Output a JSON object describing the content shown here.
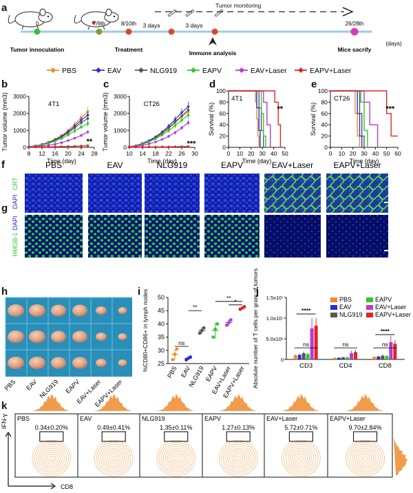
{
  "panel_labels": {
    "a": "a",
    "b": "b",
    "c": "c",
    "d": "d",
    "e": "e",
    "f": "f",
    "g": "g",
    "h": "h",
    "i": "i",
    "j": "j",
    "k": "k"
  },
  "timeline": {
    "tumor_monitoring": "Tumor monitoring",
    "events": [
      {
        "top": "0",
        "bottom": "Tumor innoculation",
        "color": "#3dbb3d"
      },
      {
        "top": "7/9th",
        "bottom": "",
        "color": "#8a9a2a"
      },
      {
        "top": "8/10th",
        "bottom": "Treatment",
        "color": "#e0452f"
      },
      {
        "top": "",
        "bottom": "",
        "color": "#e0452f"
      },
      {
        "top": "",
        "bottom": "",
        "color": "#e0452f"
      },
      {
        "top": "26/28th",
        "bottom": "Mice sacrify",
        "color": "#d63bbd"
      }
    ],
    "gap_labels": [
      "3 days",
      "3 days"
    ],
    "immune_analysis": "Immune analysis",
    "unit": "(days)"
  },
  "legend": [
    {
      "name": "PBS",
      "color": "#f08a2c"
    },
    {
      "name": "EAV",
      "color": "#2a2fd1"
    },
    {
      "name": "NLG919",
      "color": "#555555"
    },
    {
      "name": "EAPV",
      "color": "#2ec72e"
    },
    {
      "name": "EAV+Laser",
      "color": "#b63ad6"
    },
    {
      "name": "EAPV+Laser",
      "color": "#e02424"
    }
  ],
  "chart_data": [
    {
      "type": "line",
      "panel": "b",
      "annotation": "4T1",
      "xlabel": "Time (day)",
      "ylabel": "Tumor volume (mm3)",
      "xlim": [
        8,
        28
      ],
      "ylim": [
        0,
        3000
      ],
      "xticks": [
        "8",
        "12",
        "16",
        "20",
        "24",
        "28"
      ],
      "yticks": [
        "0",
        "1000",
        "2000",
        "3000"
      ],
      "x": [
        8,
        10,
        12,
        14,
        16,
        18,
        20,
        22,
        24,
        26
      ],
      "significance": "**",
      "series": [
        {
          "name": "PBS",
          "values": [
            40,
            90,
            180,
            300,
            480,
            700,
            1000,
            1350,
            1750,
            2100
          ]
        },
        {
          "name": "EAV",
          "values": [
            40,
            85,
            170,
            280,
            450,
            650,
            920,
            1250,
            1600,
            1900
          ]
        },
        {
          "name": "NLG919",
          "values": [
            40,
            80,
            160,
            260,
            420,
            600,
            850,
            1150,
            1450,
            1700
          ]
        },
        {
          "name": "EAPV",
          "values": [
            40,
            75,
            140,
            230,
            360,
            520,
            730,
            960,
            1200,
            1400
          ]
        },
        {
          "name": "EAV+Laser",
          "values": [
            30,
            50,
            80,
            120,
            190,
            280,
            400,
            540,
            700,
            900
          ]
        },
        {
          "name": "EAPV+Laser",
          "values": [
            20,
            20,
            25,
            30,
            35,
            40,
            50,
            60,
            80,
            100
          ]
        }
      ]
    },
    {
      "type": "line",
      "panel": "c",
      "annotation": "CT26",
      "xlabel": "Time (day)",
      "ylabel": "Tumor volume (mm3)",
      "xlim": [
        10,
        30
      ],
      "ylim": [
        0,
        3000
      ],
      "xticks": [
        "10",
        "14",
        "18",
        "22",
        "26",
        "30"
      ],
      "yticks": [
        "0",
        "1000",
        "2000",
        "3000"
      ],
      "x": [
        10,
        12,
        14,
        16,
        18,
        20,
        22,
        24,
        26,
        28
      ],
      "significance": "***",
      "series": [
        {
          "name": "PBS",
          "values": [
            40,
            90,
            200,
            350,
            550,
            800,
            1100,
            1450,
            1800,
            2100
          ]
        },
        {
          "name": "EAV",
          "values": [
            40,
            100,
            230,
            400,
            620,
            900,
            1250,
            1650,
            2050,
            2400
          ]
        },
        {
          "name": "NLG919",
          "values": [
            40,
            90,
            210,
            370,
            580,
            840,
            1150,
            1500,
            1850,
            2200
          ]
        },
        {
          "name": "EAPV",
          "values": [
            40,
            80,
            180,
            320,
            500,
            720,
            980,
            1280,
            1600,
            1900
          ]
        },
        {
          "name": "EAV+Laser",
          "values": [
            30,
            60,
            120,
            200,
            320,
            470,
            650,
            870,
            1150,
            1450
          ]
        },
        {
          "name": "EAPV+Laser",
          "values": [
            20,
            20,
            20,
            25,
            25,
            30,
            30,
            35,
            40,
            50
          ]
        }
      ]
    },
    {
      "type": "line",
      "panel": "d",
      "annotation": "4T1",
      "xlabel": "Time (day)",
      "ylabel": "Survival (%)",
      "xlim": [
        0,
        50
      ],
      "ylim": [
        0,
        100
      ],
      "xticks": [
        "0",
        "10",
        "20",
        "30",
        "40",
        "50"
      ],
      "yticks": [
        "0",
        "20",
        "40",
        "60",
        "80",
        "100"
      ],
      "significance": "**",
      "series": [
        {
          "name": "PBS",
          "steps": [
            [
              0,
              100
            ],
            [
              24,
              100
            ],
            [
              24,
              80
            ],
            [
              25,
              80
            ],
            [
              25,
              50
            ],
            [
              26,
              50
            ],
            [
              26,
              20
            ],
            [
              27,
              20
            ],
            [
              27,
              0
            ]
          ]
        },
        {
          "name": "EAV",
          "steps": [
            [
              0,
              100
            ],
            [
              25,
              100
            ],
            [
              25,
              70
            ],
            [
              27,
              70
            ],
            [
              27,
              30
            ],
            [
              28,
              30
            ],
            [
              28,
              0
            ]
          ]
        },
        {
          "name": "NLG919",
          "steps": [
            [
              0,
              100
            ],
            [
              27,
              100
            ],
            [
              27,
              70
            ],
            [
              29,
              70
            ],
            [
              29,
              30
            ],
            [
              31,
              30
            ],
            [
              31,
              0
            ]
          ]
        },
        {
          "name": "EAPV",
          "steps": [
            [
              0,
              100
            ],
            [
              29,
              100
            ],
            [
              29,
              60
            ],
            [
              31,
              60
            ],
            [
              31,
              20
            ],
            [
              33,
              20
            ],
            [
              33,
              0
            ]
          ]
        },
        {
          "name": "EAV+Laser",
          "steps": [
            [
              0,
              100
            ],
            [
              31,
              100
            ],
            [
              31,
              80
            ],
            [
              34,
              80
            ],
            [
              34,
              40
            ],
            [
              37,
              40
            ],
            [
              37,
              0
            ]
          ]
        },
        {
          "name": "EAPV+Laser",
          "steps": [
            [
              0,
              100
            ],
            [
              41,
              100
            ],
            [
              41,
              80
            ],
            [
              44,
              80
            ],
            [
              44,
              40
            ],
            [
              46,
              40
            ],
            [
              46,
              0
            ]
          ]
        }
      ]
    },
    {
      "type": "line",
      "panel": "e",
      "annotation": "CT26",
      "xlabel": "Time (day)",
      "ylabel": "Survival (%)",
      "xlim": [
        0,
        60
      ],
      "ylim": [
        0,
        100
      ],
      "xticks": [
        "0",
        "10",
        "20",
        "30",
        "40",
        "50",
        "60"
      ],
      "yticks": [
        "0",
        "20",
        "40",
        "60",
        "80",
        "100"
      ],
      "significance": "***",
      "series": [
        {
          "name": "PBS",
          "steps": [
            [
              0,
              100
            ],
            [
              22,
              100
            ],
            [
              22,
              60
            ],
            [
              24,
              60
            ],
            [
              24,
              20
            ],
            [
              26,
              20
            ],
            [
              26,
              0
            ]
          ]
        },
        {
          "name": "EAV",
          "steps": [
            [
              0,
              100
            ],
            [
              24,
              100
            ],
            [
              24,
              60
            ],
            [
              26,
              60
            ],
            [
              26,
              20
            ],
            [
              28,
              20
            ],
            [
              28,
              0
            ]
          ]
        },
        {
          "name": "NLG919",
          "steps": [
            [
              0,
              100
            ],
            [
              26,
              100
            ],
            [
              26,
              60
            ],
            [
              28,
              60
            ],
            [
              28,
              20
            ],
            [
              30,
              20
            ],
            [
              30,
              0
            ]
          ]
        },
        {
          "name": "EAPV",
          "steps": [
            [
              0,
              100
            ],
            [
              27,
              100
            ],
            [
              27,
              80
            ],
            [
              30,
              80
            ],
            [
              30,
              30
            ],
            [
              33,
              30
            ],
            [
              33,
              0
            ]
          ]
        },
        {
          "name": "EAV+Laser",
          "steps": [
            [
              0,
              100
            ],
            [
              30,
              100
            ],
            [
              30,
              80
            ],
            [
              35,
              80
            ],
            [
              35,
              40
            ],
            [
              42,
              40
            ],
            [
              42,
              0
            ]
          ]
        },
        {
          "name": "EAPV+Laser",
          "steps": [
            [
              0,
              100
            ],
            [
              50,
              100
            ],
            [
              50,
              60
            ],
            [
              54,
              60
            ],
            [
              54,
              20
            ],
            [
              60,
              20
            ]
          ]
        }
      ]
    },
    {
      "type": "scatter",
      "panel": "i",
      "ylabel": "%CD80+CD86+ in lymph nodes",
      "ylim": [
        25,
        50
      ],
      "yticks": [
        "25",
        "30",
        "35",
        "40",
        "45",
        "50"
      ],
      "categories": [
        "PBS",
        "EAV",
        "NLG919",
        "EAPV",
        "EAV+Laser",
        "EAPV+Laser"
      ],
      "means": [
        28.5,
        27.0,
        37.5,
        37.5,
        40.5,
        46.0
      ],
      "errors": [
        2.0,
        0.6,
        1.2,
        3.0,
        1.2,
        0.6
      ],
      "points": [
        [
          26.5,
          28.5,
          30.5
        ],
        [
          26.4,
          27.0,
          27.5
        ],
        [
          36.5,
          37.5,
          38.5
        ],
        [
          35.0,
          38.0,
          40.0
        ],
        [
          39.5,
          40.5,
          41.5
        ],
        [
          45.5,
          46.0,
          46.5
        ]
      ],
      "significance": [
        {
          "from": 1,
          "to": 2,
          "label": "**"
        },
        {
          "from": 0,
          "to": 1,
          "label": "ns"
        },
        {
          "from": 3,
          "to": 5,
          "label": "**"
        },
        {
          "from": 4,
          "to": 5,
          "label": "*"
        }
      ]
    },
    {
      "type": "bar",
      "panel": "j",
      "ylabel": "Absolute number of T cells per gram of tumors",
      "ylim": [
        0,
        15000000
      ],
      "yticks": [
        "0",
        "5.0x10⁶",
        "1.0x10⁷",
        "1.5x10⁷"
      ],
      "categories": [
        "CD3",
        "CD4",
        "CD8"
      ],
      "series": [
        {
          "name": "PBS",
          "values": [
            1000000,
            400000,
            600000
          ],
          "errors": [
            300000,
            100000,
            200000
          ]
        },
        {
          "name": "EAV",
          "values": [
            1100000,
            400000,
            700000
          ],
          "errors": [
            300000,
            100000,
            200000
          ]
        },
        {
          "name": "NLG919",
          "values": [
            1500000,
            500000,
            900000
          ],
          "errors": [
            400000,
            150000,
            300000
          ]
        },
        {
          "name": "EAPV",
          "values": [
            1300000,
            500000,
            800000
          ],
          "errors": [
            400000,
            150000,
            300000
          ]
        },
        {
          "name": "EAV+Laser",
          "values": [
            7500000,
            1500000,
            4200000
          ],
          "errors": [
            2500000,
            600000,
            1500000
          ]
        },
        {
          "name": "EAPV+Laser",
          "values": [
            8200000,
            1800000,
            3800000
          ],
          "errors": [
            1800000,
            500000,
            900000
          ]
        }
      ],
      "significance": [
        {
          "category": "CD3",
          "label": "ns",
          "type": "low"
        },
        {
          "category": "CD3",
          "label": "****",
          "type": "high"
        },
        {
          "category": "CD4",
          "label": "ns",
          "type": "low"
        },
        {
          "category": "CD8",
          "label": "ns",
          "type": "low"
        },
        {
          "category": "CD8",
          "label": "****",
          "type": "high"
        }
      ]
    }
  ],
  "micro_f": {
    "columns": [
      "PBS",
      "EAV",
      "NLG919",
      "EAPV",
      "EAV+Laser",
      "EAPV+Laser"
    ],
    "label_crt": "CRT",
    "label_dapi": "DAPI"
  },
  "micro_g": {
    "label_dapi": "DAPI",
    "label_hmgb": "HMGB-1"
  },
  "tumor_labels": [
    "PBS",
    "EAV",
    "NLG919",
    "EAPV",
    "EAV+Laser",
    "EAPV+Laser"
  ],
  "flow": {
    "x_label": "CD8",
    "y_label": "IFN-γ",
    "panels": [
      {
        "name": "PBS",
        "value": "0.34±0.20%"
      },
      {
        "name": "EAV",
        "value": "0.49±0.41%"
      },
      {
        "name": "NLG919",
        "value": "1.35±0.11%"
      },
      {
        "name": "EAPV",
        "value": "1.27±0.13%"
      },
      {
        "name": "EAV+Laser",
        "value": "5.72±0.71%"
      },
      {
        "name": "EAPV+Laser",
        "value": "9.70±2.84%"
      }
    ],
    "color": "#f08a2c"
  }
}
